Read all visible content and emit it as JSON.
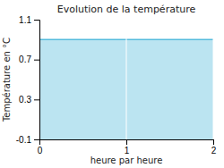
{
  "chart_data": {
    "type": "area",
    "title": "Evolution de la température",
    "x_label": "heure par heure",
    "y_label": "Température en °C",
    "x": [
      0,
      2
    ],
    "values": [
      0.9,
      0.9
    ],
    "color": "#55bbdd",
    "xlim": [
      0,
      2
    ],
    "ylim": [
      -0.1,
      1.1
    ],
    "xticks": [
      0,
      1,
      2
    ],
    "yticks": [
      -0.1,
      0.3,
      0.7,
      1.1
    ],
    "grid": true
  }
}
